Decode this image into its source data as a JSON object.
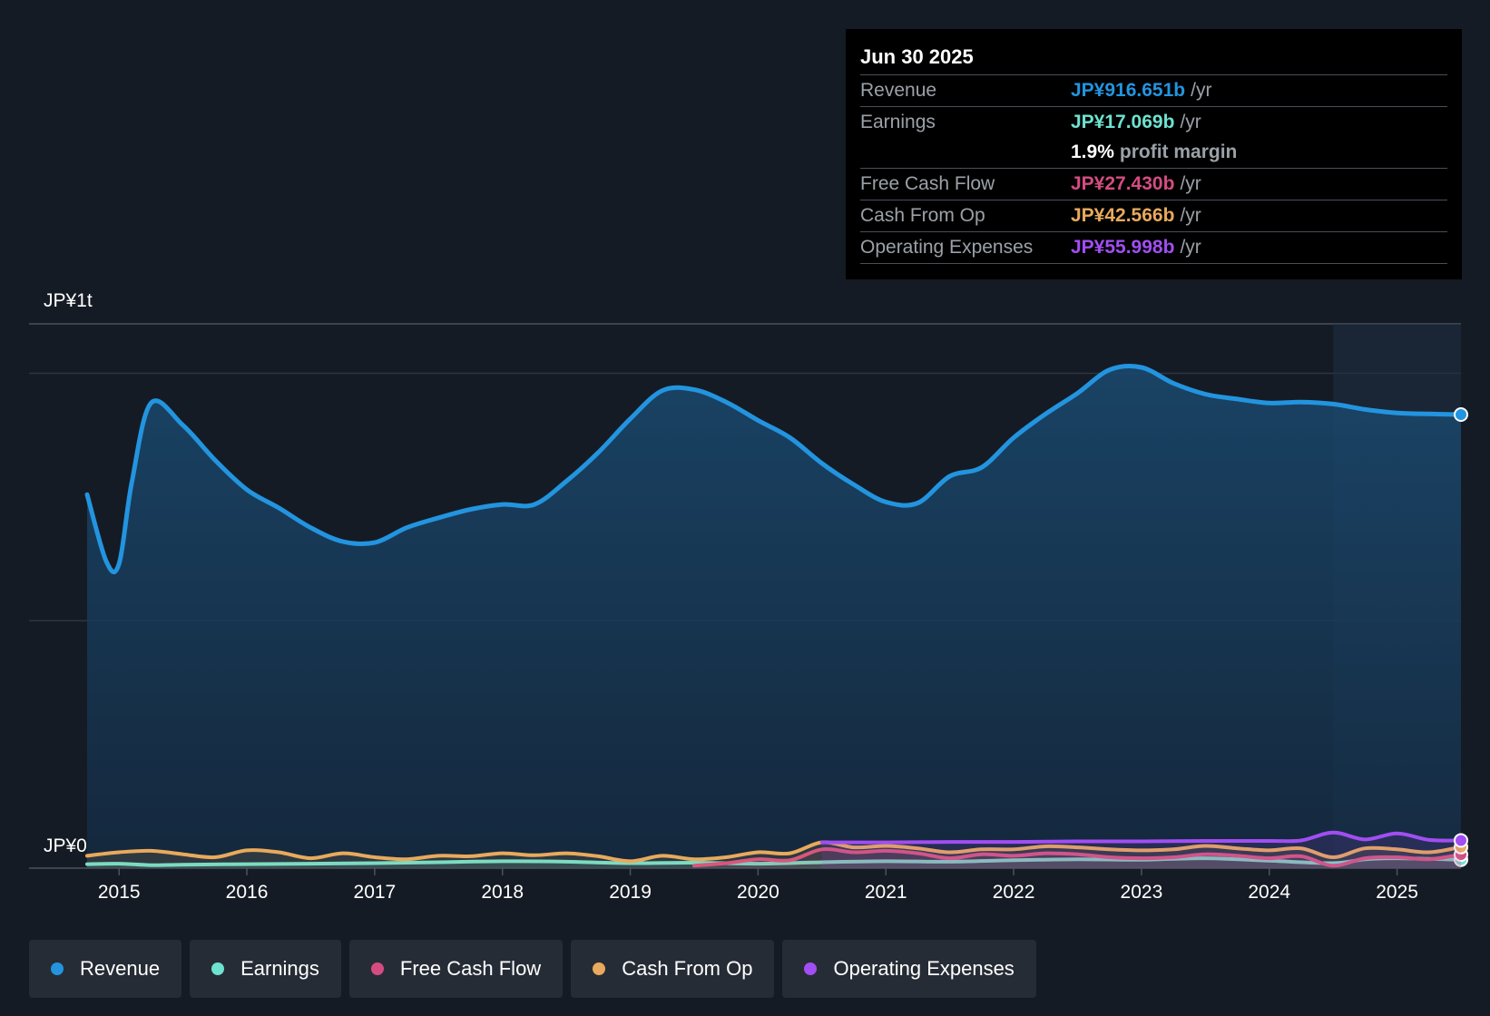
{
  "tooltip": {
    "date": "Jun 30 2025",
    "rows": [
      {
        "label": "Revenue",
        "value": "JP¥916.651b",
        "unit": "/yr",
        "color": "#2394df"
      },
      {
        "label": "Earnings",
        "value": "JP¥17.069b",
        "unit": "/yr",
        "color": "#6ee2d0"
      },
      {
        "margin_value": "1.9%",
        "margin_text": "profit margin"
      },
      {
        "label": "Free Cash Flow",
        "value": "JP¥27.430b",
        "unit": "/yr",
        "color": "#d44c82"
      },
      {
        "label": "Cash From Op",
        "value": "JP¥42.566b",
        "unit": "/yr",
        "color": "#e8aa5c"
      },
      {
        "label": "Operating Expenses",
        "value": "JP¥55.998b",
        "unit": "/yr",
        "color": "#a14ef2"
      }
    ]
  },
  "legend": [
    {
      "label": "Revenue",
      "color": "#2394df"
    },
    {
      "label": "Earnings",
      "color": "#6ee2d0"
    },
    {
      "label": "Free Cash Flow",
      "color": "#d44c82"
    },
    {
      "label": "Cash From Op",
      "color": "#e8aa5c"
    },
    {
      "label": "Operating Expenses",
      "color": "#a14ef2"
    }
  ],
  "chart_data": {
    "type": "area",
    "y_tick_labels": [
      "JP¥1t",
      "JP¥0"
    ],
    "ylim": [
      0,
      1100
    ],
    "xlim": [
      2014.75,
      2025.5
    ],
    "x_ticks": [
      2015,
      2016,
      2017,
      2018,
      2019,
      2020,
      2021,
      2022,
      2023,
      2024,
      2025
    ],
    "x_tick_labels": [
      "2015",
      "2016",
      "2017",
      "2018",
      "2019",
      "2020",
      "2021",
      "2022",
      "2023",
      "2024",
      "2025"
    ],
    "forecast_region_start": 2024.5,
    "series": [
      {
        "name": "Revenue",
        "color": "#2394df",
        "filled": true,
        "points": [
          [
            2014.75,
            755
          ],
          [
            2014.9,
            620
          ],
          [
            2015.0,
            615
          ],
          [
            2015.1,
            780
          ],
          [
            2015.25,
            940
          ],
          [
            2015.5,
            895
          ],
          [
            2015.75,
            825
          ],
          [
            2016.0,
            765
          ],
          [
            2016.25,
            728
          ],
          [
            2016.5,
            688
          ],
          [
            2016.75,
            660
          ],
          [
            2017.0,
            658
          ],
          [
            2017.25,
            688
          ],
          [
            2017.5,
            708
          ],
          [
            2017.75,
            725
          ],
          [
            2018.0,
            735
          ],
          [
            2018.25,
            735
          ],
          [
            2018.5,
            782
          ],
          [
            2018.75,
            840
          ],
          [
            2019.0,
            908
          ],
          [
            2019.25,
            965
          ],
          [
            2019.5,
            967
          ],
          [
            2019.75,
            942
          ],
          [
            2020.0,
            905
          ],
          [
            2020.25,
            870
          ],
          [
            2020.5,
            818
          ],
          [
            2020.75,
            775
          ],
          [
            2021.0,
            740
          ],
          [
            2021.25,
            738
          ],
          [
            2021.5,
            792
          ],
          [
            2021.75,
            810
          ],
          [
            2022.0,
            870
          ],
          [
            2022.25,
            918
          ],
          [
            2022.5,
            960
          ],
          [
            2022.75,
            1007
          ],
          [
            2023.0,
            1012
          ],
          [
            2023.25,
            980
          ],
          [
            2023.5,
            958
          ],
          [
            2023.75,
            948
          ],
          [
            2024.0,
            940
          ],
          [
            2024.25,
            942
          ],
          [
            2024.5,
            938
          ],
          [
            2024.75,
            927
          ],
          [
            2025.0,
            920
          ],
          [
            2025.25,
            918
          ],
          [
            2025.5,
            916.651
          ]
        ]
      },
      {
        "name": "Earnings",
        "color": "#6ee2d0",
        "filled": false,
        "points": [
          [
            2014.75,
            8
          ],
          [
            2015.0,
            9
          ],
          [
            2015.25,
            6
          ],
          [
            2015.5,
            7
          ],
          [
            2016.0,
            8
          ],
          [
            2016.5,
            9
          ],
          [
            2017.0,
            10
          ],
          [
            2017.5,
            12
          ],
          [
            2018.0,
            14
          ],
          [
            2018.5,
            13
          ],
          [
            2019.0,
            10
          ],
          [
            2019.5,
            11
          ],
          [
            2020.0,
            9
          ],
          [
            2020.5,
            12
          ],
          [
            2021.0,
            14
          ],
          [
            2021.5,
            13
          ],
          [
            2022.0,
            16
          ],
          [
            2022.5,
            18
          ],
          [
            2023.0,
            17
          ],
          [
            2023.5,
            20
          ],
          [
            2024.0,
            15
          ],
          [
            2024.5,
            10
          ],
          [
            2024.75,
            18
          ],
          [
            2025.0,
            20
          ],
          [
            2025.5,
            17.069
          ]
        ]
      },
      {
        "name": "Free Cash Flow",
        "color": "#d44c82",
        "filled": false,
        "points": [
          [
            2019.5,
            5
          ],
          [
            2019.75,
            10
          ],
          [
            2020.0,
            18
          ],
          [
            2020.25,
            16
          ],
          [
            2020.5,
            38
          ],
          [
            2020.75,
            32
          ],
          [
            2021.0,
            35
          ],
          [
            2021.25,
            30
          ],
          [
            2021.5,
            20
          ],
          [
            2021.75,
            28
          ],
          [
            2022.0,
            25
          ],
          [
            2022.25,
            30
          ],
          [
            2022.5,
            28
          ],
          [
            2022.75,
            22
          ],
          [
            2023.0,
            20
          ],
          [
            2023.25,
            22
          ],
          [
            2023.5,
            28
          ],
          [
            2023.75,
            25
          ],
          [
            2024.0,
            20
          ],
          [
            2024.25,
            24
          ],
          [
            2024.5,
            5
          ],
          [
            2024.75,
            20
          ],
          [
            2025.0,
            22
          ],
          [
            2025.25,
            18
          ],
          [
            2025.5,
            27.43
          ]
        ]
      },
      {
        "name": "Cash From Op",
        "color": "#e8aa5c",
        "filled": false,
        "points": [
          [
            2014.75,
            25
          ],
          [
            2015.0,
            32
          ],
          [
            2015.25,
            35
          ],
          [
            2015.5,
            28
          ],
          [
            2015.75,
            22
          ],
          [
            2016.0,
            36
          ],
          [
            2016.25,
            32
          ],
          [
            2016.5,
            20
          ],
          [
            2016.75,
            30
          ],
          [
            2017.0,
            22
          ],
          [
            2017.25,
            18
          ],
          [
            2017.5,
            25
          ],
          [
            2017.75,
            24
          ],
          [
            2018.0,
            30
          ],
          [
            2018.25,
            26
          ],
          [
            2018.5,
            30
          ],
          [
            2018.75,
            24
          ],
          [
            2019.0,
            14
          ],
          [
            2019.25,
            25
          ],
          [
            2019.5,
            18
          ],
          [
            2019.75,
            22
          ],
          [
            2020.0,
            32
          ],
          [
            2020.25,
            30
          ],
          [
            2020.5,
            52
          ],
          [
            2020.75,
            42
          ],
          [
            2021.0,
            45
          ],
          [
            2021.25,
            40
          ],
          [
            2021.5,
            32
          ],
          [
            2021.75,
            38
          ],
          [
            2022.0,
            38
          ],
          [
            2022.25,
            44
          ],
          [
            2022.5,
            42
          ],
          [
            2022.75,
            38
          ],
          [
            2023.0,
            36
          ],
          [
            2023.25,
            38
          ],
          [
            2023.5,
            45
          ],
          [
            2023.75,
            40
          ],
          [
            2024.0,
            36
          ],
          [
            2024.25,
            40
          ],
          [
            2024.5,
            22
          ],
          [
            2024.75,
            40
          ],
          [
            2025.0,
            38
          ],
          [
            2025.25,
            32
          ],
          [
            2025.5,
            42.566
          ]
        ]
      },
      {
        "name": "Operating Expenses",
        "color": "#a14ef2",
        "filled": false,
        "points": [
          [
            2020.5,
            52
          ],
          [
            2021.0,
            52
          ],
          [
            2021.5,
            53
          ],
          [
            2022.0,
            53
          ],
          [
            2022.5,
            54
          ],
          [
            2023.0,
            54
          ],
          [
            2023.5,
            55
          ],
          [
            2024.0,
            55
          ],
          [
            2024.25,
            56
          ],
          [
            2024.5,
            72
          ],
          [
            2024.75,
            58
          ],
          [
            2025.0,
            70
          ],
          [
            2025.25,
            57
          ],
          [
            2025.5,
            55.998
          ]
        ]
      }
    ]
  }
}
